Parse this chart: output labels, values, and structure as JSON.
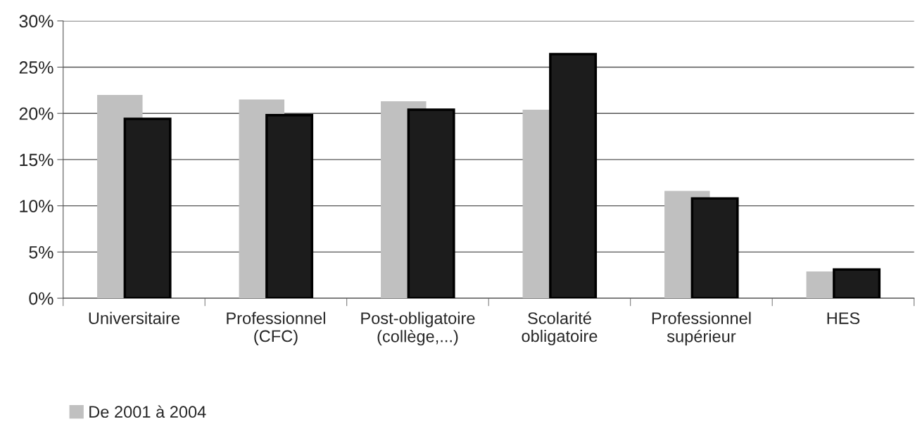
{
  "chart_data": {
    "type": "bar",
    "categories": [
      "Universitaire",
      "Professionnel\n(CFC)",
      "Post-obligatoire\n(collège,...)",
      "Scolarité\nobligatoire",
      "Professionnel\nsupérieur",
      "HES"
    ],
    "series": [
      {
        "name": "De 2001 à 2004",
        "color": "#c0c0c0",
        "values": [
          22.0,
          21.5,
          21.3,
          20.4,
          11.6,
          2.9
        ]
      },
      {
        "color": "#1c1c1c",
        "values": [
          19.4,
          19.8,
          20.4,
          26.4,
          10.8,
          3.1
        ]
      }
    ],
    "ylim": [
      0,
      30
    ],
    "yticks": [
      {
        "value": 0,
        "label": "0%"
      },
      {
        "value": 5,
        "label": "5%"
      },
      {
        "value": 10,
        "label": "10%"
      },
      {
        "value": 15,
        "label": "15%"
      },
      {
        "value": 20,
        "label": "20%"
      },
      {
        "value": 25,
        "label": "25%"
      },
      {
        "value": 30,
        "label": "30%"
      }
    ],
    "grid": "y",
    "legend": "bottom left"
  }
}
